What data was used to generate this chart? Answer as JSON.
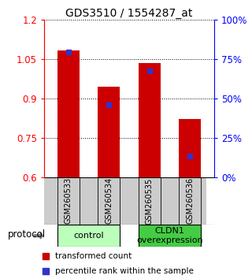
{
  "title": "GDS3510 / 1554287_at",
  "samples": [
    "GSM260533",
    "GSM260534",
    "GSM260535",
    "GSM260536"
  ],
  "bar_values": [
    1.083,
    0.945,
    1.035,
    0.82
  ],
  "blue_marker_values": [
    1.075,
    0.875,
    1.005,
    0.68
  ],
  "ymin": 0.6,
  "ymax": 1.2,
  "yticks_left": [
    0.6,
    0.75,
    0.9,
    1.05,
    1.2
  ],
  "bar_color": "#cc0000",
  "blue_color": "#3333cc",
  "bar_width": 0.55,
  "groups": [
    {
      "label": "control",
      "samples_idx": [
        0,
        1
      ],
      "color": "#bbffbb"
    },
    {
      "label": "CLDN1\noverexpression",
      "samples_idx": [
        2,
        3
      ],
      "color": "#44cc44"
    }
  ],
  "tick_area_bg": "#cccccc",
  "title_fontsize": 10,
  "ylabel_fontsize": 9,
  "tick_fontsize": 8.5,
  "sample_fontsize": 7,
  "legend_fontsize": 7.5,
  "group_fontsize": 8
}
